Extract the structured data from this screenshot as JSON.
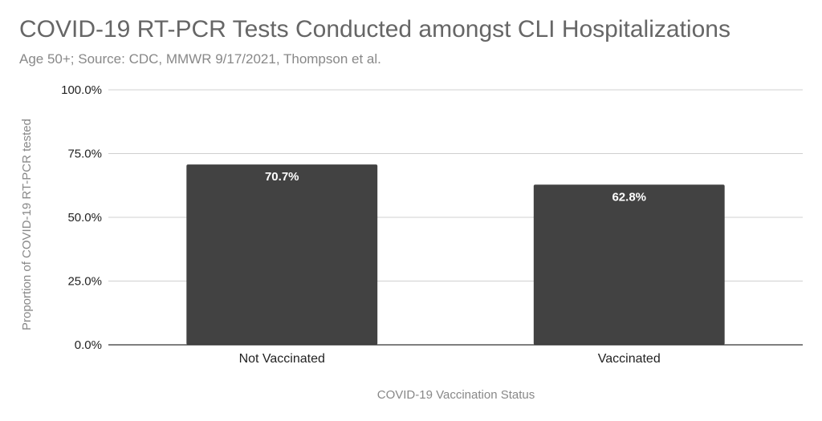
{
  "chart_data": {
    "type": "bar",
    "title": "COVID-19 RT-PCR Tests Conducted amongst CLI Hospitalizations",
    "subtitle": "Age 50+; Source: CDC, MMWR 9/17/2021, Thompson et al.",
    "categories": [
      "Not Vaccinated",
      "Vaccinated"
    ],
    "values": [
      70.7,
      62.8
    ],
    "data_labels": [
      "70.7%",
      "62.8%"
    ],
    "xlabel": "COVID-19 Vaccination Status",
    "ylabel": "Proportion of COVID-19 RT-PCR tested",
    "ylim": [
      0,
      100
    ],
    "yticks": [
      0,
      25,
      50,
      75,
      100
    ],
    "ytick_labels": [
      "0.0%",
      "25.0%",
      "50.0%",
      "75.0%",
      "100.0%"
    ],
    "grid": true,
    "legend": "none",
    "bar_color": "#424242"
  }
}
